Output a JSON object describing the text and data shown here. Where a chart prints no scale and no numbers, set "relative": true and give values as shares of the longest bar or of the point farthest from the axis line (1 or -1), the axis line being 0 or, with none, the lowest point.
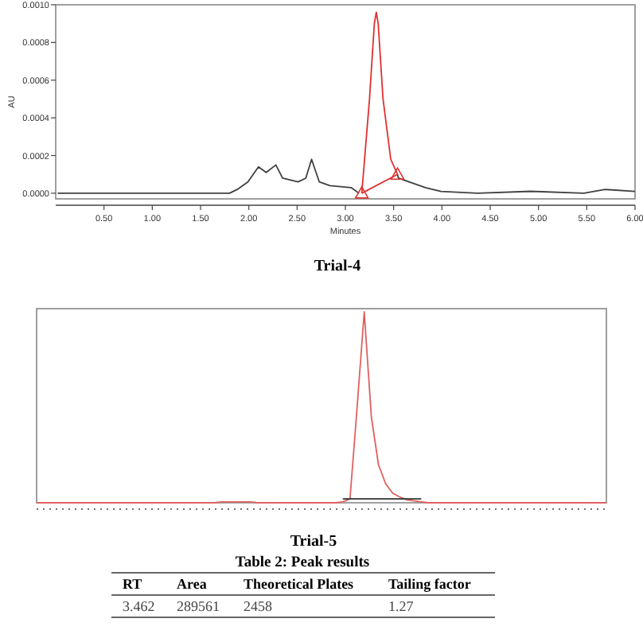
{
  "chart_data": [
    {
      "type": "line",
      "title": "Trial-4",
      "xlabel": "Minutes",
      "ylabel": "AU",
      "xlim": [
        0,
        6
      ],
      "ylim": [
        -3e-05,
        0.001
      ],
      "xticks": [
        {
          "value": 0.5,
          "label": "0.50"
        },
        {
          "value": 1,
          "label": "1.00"
        },
        {
          "value": 1.5,
          "label": "1.50"
        },
        {
          "value": 2,
          "label": "2.00"
        },
        {
          "value": 2.5,
          "label": "2.50"
        },
        {
          "value": 3,
          "label": "3.00"
        },
        {
          "value": 3.5,
          "label": "3.50"
        },
        {
          "value": 4,
          "label": "4.00"
        },
        {
          "value": 4.5,
          "label": "4.50"
        },
        {
          "value": 5,
          "label": "5.00"
        },
        {
          "value": 5.5,
          "label": "5.50"
        },
        {
          "value": 6,
          "label": "6.00"
        }
      ],
      "yticks": [
        {
          "value": 0,
          "label": "0.0000"
        },
        {
          "value": 0.0002,
          "label": "0.0002"
        },
        {
          "value": 0.0004,
          "label": "0.0004"
        },
        {
          "value": 0.0006,
          "label": "0.0006"
        },
        {
          "value": 0.0008,
          "label": "0.0008"
        },
        {
          "value": 0.001,
          "label": "0.0010"
        }
      ],
      "series": [
        {
          "color": "#404040",
          "x": [
            0.02,
            0.54,
            1.09,
            1.52,
            1.8,
            1.88,
            1.99,
            2.1,
            2.18,
            2.28,
            2.35,
            2.51,
            2.59,
            2.65,
            2.73,
            2.84,
            3.06,
            3.14,
            3.3,
            3.54,
            3.55,
            3.83,
            3.99,
            4.37,
            4.92,
            5.47,
            5.69,
            6.0
          ],
          "values": [
            0,
            0,
            0,
            0,
            0,
            2e-05,
            6e-05,
            0.00014,
            0.00011,
            0.00015,
            8e-05,
            6e-05,
            8e-05,
            0.00018,
            6e-05,
            4e-05,
            3e-05,
            0,
            null,
            0.0001,
            8e-05,
            3e-05,
            1e-05,
            0,
            1e-05,
            0,
            2e-05,
            1e-05
          ]
        },
        {
          "color": "#e03030",
          "x": [
            3.17,
            3.25,
            3.3,
            3.32,
            3.34,
            3.39,
            3.47,
            3.54
          ],
          "values": [
            0,
            0.0005,
            0.0009,
            0.00096,
            0.0009,
            0.0005,
            0.00018,
            0.0001
          ]
        },
        {
          "color": "#e03030",
          "x": [
            3.17,
            3.54
          ],
          "values": [
            0,
            0.0001
          ]
        },
        {
          "type": "scatter",
          "color": "#e03030",
          "marker": "triangle",
          "x": [
            3.17,
            3.54
          ],
          "values": [
            0,
            0.0001
          ]
        }
      ]
    },
    {
      "type": "line",
      "title": "Trial-5",
      "relative": true,
      "categories": [
        null,
        null,
        null,
        null,
        null,
        null,
        null,
        null,
        null,
        null,
        null,
        null,
        null,
        null,
        null,
        null,
        null,
        null,
        null,
        null,
        null,
        null,
        null,
        null,
        null,
        null,
        null,
        null,
        null,
        null,
        null,
        null,
        null,
        null,
        null,
        null,
        null,
        null,
        null,
        null,
        null,
        null,
        null,
        null,
        null,
        null,
        null,
        null,
        null,
        null,
        null,
        null,
        null,
        null,
        null,
        null,
        null,
        null,
        null,
        null,
        null,
        null,
        null,
        null,
        null,
        null,
        null,
        null,
        null,
        null,
        null,
        null,
        null,
        null,
        null,
        null,
        null,
        null,
        null,
        null,
        null
      ],
      "series": [
        {
          "color": "#e06060",
          "values": [
            0,
            0,
            0,
            0,
            0,
            0,
            0,
            0,
            0,
            0,
            0,
            0,
            0,
            0,
            0,
            0,
            0,
            0,
            0,
            0,
            0,
            0,
            0,
            0,
            0,
            0,
            0.005,
            0.005,
            0.005,
            0.005,
            0.005,
            0,
            0,
            0,
            0,
            0,
            0,
            0,
            0,
            0,
            0,
            0,
            0,
            0.005,
            0.02,
            0.5,
            1,
            0.45,
            0.2,
            0.1,
            0.05,
            0.03,
            0.015,
            0.01,
            0.005,
            0,
            0,
            0,
            0,
            0,
            0,
            0,
            0,
            0,
            0,
            0,
            0,
            0,
            0,
            0,
            0,
            0,
            0,
            0,
            0,
            0,
            0,
            0,
            0,
            0,
            0
          ]
        },
        {
          "color": "#303030",
          "values": [
            null,
            null,
            null,
            null,
            null,
            null,
            null,
            null,
            null,
            null,
            null,
            null,
            null,
            null,
            null,
            null,
            null,
            null,
            null,
            null,
            null,
            null,
            null,
            null,
            null,
            null,
            null,
            null,
            null,
            null,
            null,
            null,
            null,
            null,
            null,
            null,
            null,
            null,
            null,
            null,
            null,
            null,
            null,
            0.02,
            0.02,
            0.02,
            0.02,
            0.02,
            0.02,
            0.02,
            0.02,
            0.02,
            0.02,
            0.02,
            0.02,
            null,
            null,
            null,
            null,
            null,
            null,
            null,
            null,
            null,
            null,
            null,
            null,
            null,
            null,
            null,
            null,
            null,
            null,
            null,
            null,
            null,
            null,
            null,
            null,
            null,
            null
          ]
        }
      ]
    },
    {
      "type": "other",
      "title": "Table 2: Peak results",
      "annotations": [
        "RT",
        "Area",
        "Theoretical Plates",
        "Tailing factor",
        "3.462",
        "289561",
        "2458",
        "1.27"
      ]
    }
  ]
}
